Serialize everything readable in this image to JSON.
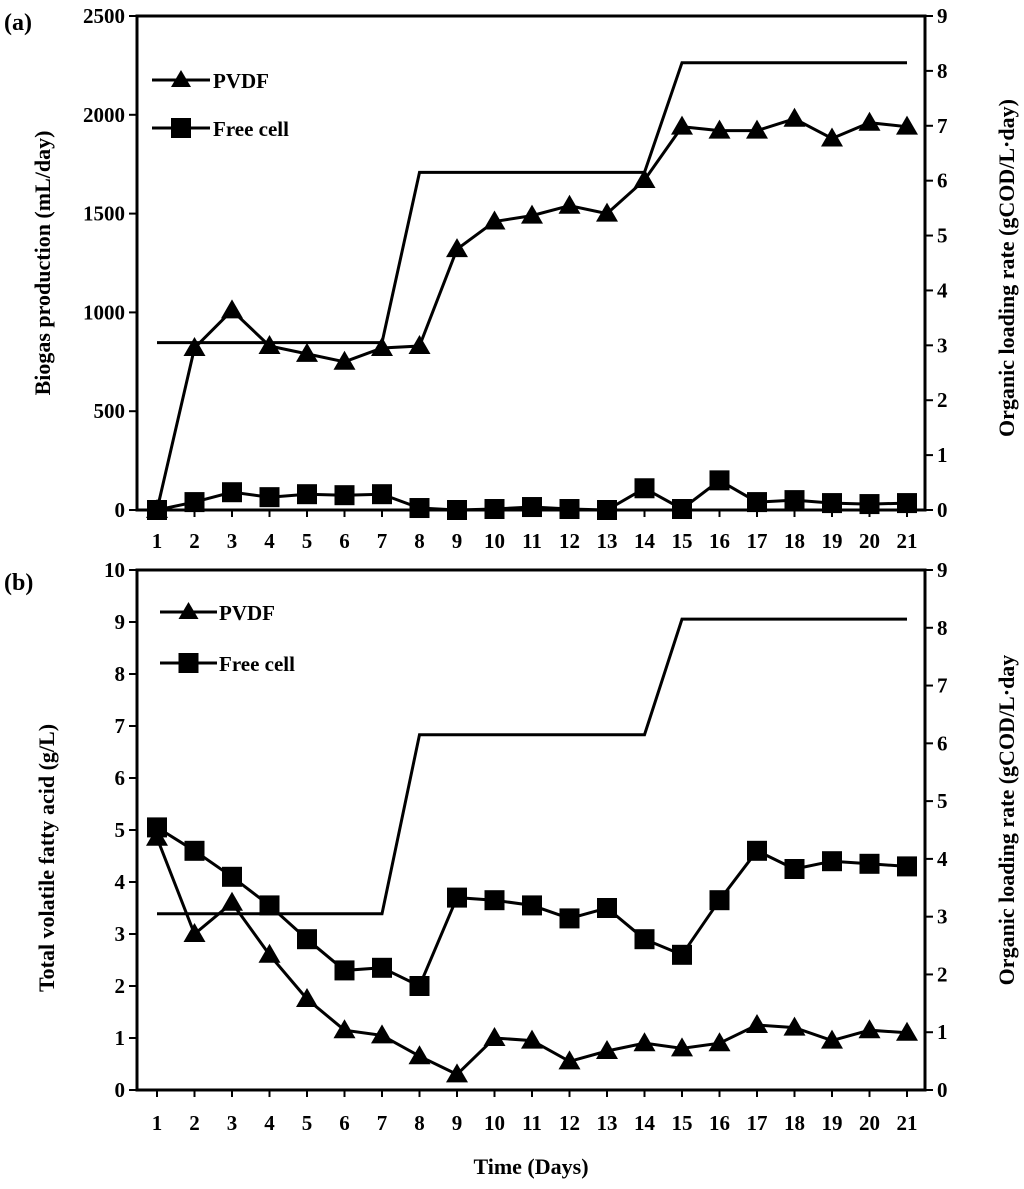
{
  "chart_data": [
    {
      "type": "line",
      "panel_label": "(a)",
      "xlabel": "",
      "ylabel": "Biogas production  (mL/day)",
      "y2label": "Organic loading rate  (gCOD/L·day)",
      "x": [
        1,
        2,
        3,
        4,
        5,
        6,
        7,
        8,
        9,
        10,
        11,
        12,
        13,
        14,
        15,
        16,
        17,
        18,
        19,
        20,
        21
      ],
      "x_tick_labels": [
        "1",
        "2",
        "3",
        "4",
        "5",
        "6",
        "7",
        "8",
        "9",
        "10",
        "11",
        "12",
        "13",
        "14",
        "15",
        "16",
        "17",
        "18",
        "19",
        "20",
        "21"
      ],
      "ylim": [
        0,
        2500
      ],
      "y_ticks": [
        0,
        500,
        1000,
        1500,
        2000,
        2500
      ],
      "y_tick_labels": [
        "0",
        "500",
        "1000",
        "1500",
        "2000",
        "2500"
      ],
      "y2lim": [
        0,
        9
      ],
      "y2_ticks": [
        0,
        1,
        2,
        3,
        4,
        5,
        6,
        7,
        8,
        9
      ],
      "y2_tick_labels": [
        "0",
        "1",
        "2",
        "3",
        "4",
        "5",
        "6",
        "7",
        "8",
        "9"
      ],
      "legend_position": "top-left",
      "series": [
        {
          "name": "PVDF",
          "marker": "triangle",
          "axis": "left",
          "values": [
            0,
            820,
            1010,
            830,
            790,
            750,
            820,
            830,
            1320,
            1460,
            1490,
            1540,
            1500,
            1670,
            1940,
            1920,
            1920,
            1980,
            1880,
            1960,
            1940
          ]
        },
        {
          "name": "Free cell",
          "marker": "square",
          "axis": "left",
          "values": [
            0,
            40,
            90,
            65,
            80,
            75,
            80,
            10,
            0,
            5,
            15,
            5,
            0,
            110,
            5,
            150,
            40,
            50,
            35,
            30,
            35
          ]
        }
      ],
      "olr_series": {
        "name": "Organic loading rate",
        "axis": "right",
        "points": [
          [
            1,
            3.05
          ],
          [
            7,
            3.05
          ],
          [
            8,
            6.15
          ],
          [
            14,
            6.15
          ],
          [
            15,
            8.15
          ],
          [
            21,
            8.15
          ]
        ]
      }
    },
    {
      "type": "line",
      "panel_label": "(b)",
      "xlabel": "Time (Days)",
      "ylabel": "Total volatile fatty acid (g/L)",
      "y2label": "Organic loading rate  (gCOD/L·day",
      "x": [
        1,
        2,
        3,
        4,
        5,
        6,
        7,
        8,
        9,
        10,
        11,
        12,
        13,
        14,
        15,
        16,
        17,
        18,
        19,
        20,
        21
      ],
      "x_tick_labels": [
        "1",
        "2",
        "3",
        "4",
        "5",
        "6",
        "7",
        "8",
        "9",
        "10",
        "11",
        "12",
        "13",
        "14",
        "15",
        "16",
        "17",
        "18",
        "19",
        "20",
        "21"
      ],
      "ylim": [
        0,
        10
      ],
      "y_ticks": [
        0,
        1,
        2,
        3,
        4,
        5,
        6,
        7,
        8,
        9,
        10
      ],
      "y_tick_labels": [
        "0",
        "1",
        "2",
        "3",
        "4",
        "5",
        "6",
        "7",
        "8",
        "9",
        "10"
      ],
      "y2lim": [
        0,
        9
      ],
      "y2_ticks": [
        0,
        1,
        2,
        3,
        4,
        5,
        6,
        7,
        8,
        9
      ],
      "y2_tick_labels": [
        "0",
        "1",
        "2",
        "3",
        "4",
        "5",
        "6",
        "7",
        "8",
        "9"
      ],
      "legend_position": "top-left",
      "series": [
        {
          "name": "PVDF",
          "marker": "triangle",
          "axis": "left",
          "values": [
            4.85,
            3.0,
            3.6,
            2.6,
            1.75,
            1.15,
            1.05,
            0.65,
            0.3,
            1.0,
            0.95,
            0.55,
            0.75,
            0.9,
            0.8,
            0.9,
            1.25,
            1.2,
            0.95,
            1.15,
            1.1
          ]
        },
        {
          "name": "Free cell",
          "marker": "square",
          "axis": "left",
          "values": [
            5.05,
            4.6,
            4.1,
            3.55,
            2.9,
            2.3,
            2.35,
            2.0,
            3.7,
            3.65,
            3.55,
            3.3,
            3.5,
            2.9,
            2.6,
            3.65,
            4.6,
            4.25,
            4.4,
            4.35,
            4.3
          ]
        }
      ],
      "olr_series": {
        "name": "Organic loading rate",
        "axis": "right",
        "points": [
          [
            1,
            3.05
          ],
          [
            7,
            3.05
          ],
          [
            8,
            6.15
          ],
          [
            14,
            6.15
          ],
          [
            15,
            8.15
          ],
          [
            21,
            8.15
          ]
        ]
      }
    }
  ]
}
